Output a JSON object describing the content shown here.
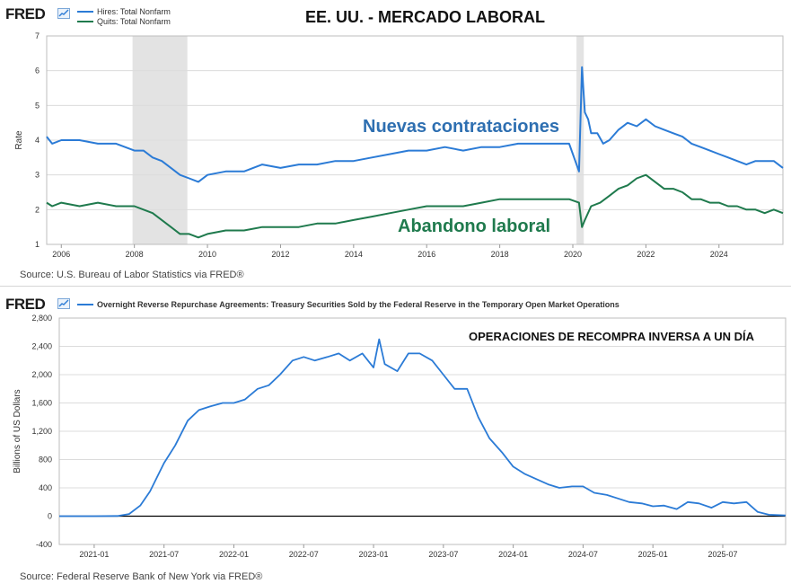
{
  "chart_data": [
    {
      "type": "line",
      "branding": "FRED",
      "title": "EE. UU. - MERCADO LABORAL",
      "ylabel": "Rate",
      "xlabel": "",
      "ylim": [
        1,
        7
      ],
      "xlim": [
        2005.6,
        2025.75
      ],
      "yticks": [
        "1",
        "2",
        "3",
        "4",
        "5",
        "6",
        "7"
      ],
      "xticks": [
        "2006",
        "2008",
        "2010",
        "2012",
        "2014",
        "2016",
        "2018",
        "2020",
        "2022",
        "2024"
      ],
      "recessions": [
        [
          2007.95,
          2009.45
        ],
        [
          2020.1,
          2020.3
        ]
      ],
      "annotations": [
        "Nuevas contrataciones",
        "Abandono laboral"
      ],
      "series": [
        {
          "name": "Hires: Total Nonfarm",
          "color": "#2b7bd6",
          "x": [
            2005.6,
            2005.75,
            2006.0,
            2006.5,
            2007.0,
            2007.5,
            2008.0,
            2008.25,
            2008.5,
            2008.75,
            2009.0,
            2009.25,
            2009.5,
            2009.75,
            2010.0,
            2010.5,
            2011.0,
            2011.5,
            2012.0,
            2012.5,
            2013.0,
            2013.5,
            2014.0,
            2014.5,
            2015.0,
            2015.5,
            2016.0,
            2016.5,
            2017.0,
            2017.5,
            2018.0,
            2018.5,
            2019.0,
            2019.5,
            2019.9,
            2020.17,
            2020.25,
            2020.33,
            2020.42,
            2020.5,
            2020.67,
            2020.83,
            2021.0,
            2021.25,
            2021.5,
            2021.75,
            2022.0,
            2022.25,
            2022.5,
            2022.75,
            2023.0,
            2023.25,
            2023.5,
            2023.75,
            2024.0,
            2024.25,
            2024.5,
            2024.75,
            2025.0,
            2025.25,
            2025.5,
            2025.75
          ],
          "values": [
            4.1,
            3.9,
            4.0,
            4.0,
            3.9,
            3.9,
            3.7,
            3.7,
            3.5,
            3.4,
            3.2,
            3.0,
            2.9,
            2.8,
            3.0,
            3.1,
            3.1,
            3.3,
            3.2,
            3.3,
            3.3,
            3.4,
            3.4,
            3.5,
            3.6,
            3.7,
            3.7,
            3.8,
            3.7,
            3.8,
            3.8,
            3.9,
            3.9,
            3.9,
            3.9,
            3.1,
            6.1,
            4.8,
            4.6,
            4.2,
            4.2,
            3.9,
            4.0,
            4.3,
            4.5,
            4.4,
            4.6,
            4.4,
            4.3,
            4.2,
            4.1,
            3.9,
            3.8,
            3.7,
            3.6,
            3.5,
            3.4,
            3.3,
            3.4,
            3.4,
            3.4,
            3.2
          ]
        },
        {
          "name": "Quits: Total Nonfarm",
          "color": "#1f7a4d",
          "x": [
            2005.6,
            2005.75,
            2006.0,
            2006.5,
            2007.0,
            2007.5,
            2008.0,
            2008.25,
            2008.5,
            2008.75,
            2009.0,
            2009.25,
            2009.5,
            2009.75,
            2010.0,
            2010.5,
            2011.0,
            2011.5,
            2012.0,
            2012.5,
            2013.0,
            2013.5,
            2014.0,
            2014.5,
            2015.0,
            2015.5,
            2016.0,
            2016.5,
            2017.0,
            2017.5,
            2018.0,
            2018.5,
            2019.0,
            2019.5,
            2019.9,
            2020.17,
            2020.25,
            2020.33,
            2020.5,
            2020.75,
            2021.0,
            2021.25,
            2021.5,
            2021.75,
            2022.0,
            2022.25,
            2022.5,
            2022.75,
            2023.0,
            2023.25,
            2023.5,
            2023.75,
            2024.0,
            2024.25,
            2024.5,
            2024.75,
            2025.0,
            2025.25,
            2025.5,
            2025.75
          ],
          "values": [
            2.2,
            2.1,
            2.2,
            2.1,
            2.2,
            2.1,
            2.1,
            2.0,
            1.9,
            1.7,
            1.5,
            1.3,
            1.3,
            1.2,
            1.3,
            1.4,
            1.4,
            1.5,
            1.5,
            1.5,
            1.6,
            1.6,
            1.7,
            1.8,
            1.9,
            2.0,
            2.1,
            2.1,
            2.1,
            2.2,
            2.3,
            2.3,
            2.3,
            2.3,
            2.3,
            2.2,
            1.5,
            1.7,
            2.1,
            2.2,
            2.4,
            2.6,
            2.7,
            2.9,
            3.0,
            2.8,
            2.6,
            2.6,
            2.5,
            2.3,
            2.3,
            2.2,
            2.2,
            2.1,
            2.1,
            2.0,
            2.0,
            1.9,
            2.0,
            1.9
          ]
        }
      ],
      "source": "Source: U.S. Bureau of Labor Statistics via FRED®"
    },
    {
      "type": "line",
      "branding": "FRED",
      "title": "OPERACIONES DE RECOMPRA INVERSA A UN DÍA",
      "ylabel": "Billions of US Dollars",
      "xlabel": "",
      "ylim": [
        -400,
        2800
      ],
      "xlim": [
        2020.75,
        2025.95
      ],
      "yticks": [
        "-400",
        "0",
        "400",
        "800",
        "1,200",
        "1,600",
        "2,000",
        "2,400",
        "2,800"
      ],
      "xticks": [
        "2021-01",
        "2021-07",
        "2022-01",
        "2022-07",
        "2023-01",
        "2023-07",
        "2024-01",
        "2024-07",
        "2025-01",
        "2025-07"
      ],
      "series": [
        {
          "name": "Overnight Reverse Repurchase Agreements: Treasury Securities Sold by the Federal Reserve in the Temporary Open Market Operations",
          "color": "#2b7bd6",
          "x": [
            2020.75,
            2021.0,
            2021.17,
            2021.25,
            2021.33,
            2021.4,
            2021.5,
            2021.58,
            2021.67,
            2021.75,
            2021.83,
            2021.92,
            2022.0,
            2022.08,
            2022.17,
            2022.25,
            2022.33,
            2022.42,
            2022.5,
            2022.58,
            2022.67,
            2022.75,
            2022.83,
            2022.92,
            2023.0,
            2023.04,
            2023.08,
            2023.17,
            2023.25,
            2023.33,
            2023.42,
            2023.5,
            2023.58,
            2023.67,
            2023.75,
            2023.83,
            2023.92,
            2024.0,
            2024.08,
            2024.17,
            2024.25,
            2024.33,
            2024.42,
            2024.5,
            2024.58,
            2024.67,
            2024.75,
            2024.83,
            2024.92,
            2025.0,
            2025.08,
            2025.17,
            2025.25,
            2025.33,
            2025.42,
            2025.5,
            2025.58,
            2025.67,
            2025.75,
            2025.83,
            2025.95
          ],
          "values": [
            0,
            0,
            2,
            30,
            150,
            350,
            750,
            1000,
            1350,
            1500,
            1550,
            1600,
            1600,
            1650,
            1800,
            1850,
            2000,
            2200,
            2250,
            2200,
            2250,
            2300,
            2200,
            2300,
            2100,
            2500,
            2150,
            2050,
            2300,
            2300,
            2200,
            2000,
            1800,
            1800,
            1400,
            1100,
            900,
            700,
            600,
            520,
            450,
            400,
            420,
            420,
            330,
            300,
            250,
            200,
            180,
            140,
            150,
            100,
            200,
            180,
            120,
            200,
            180,
            200,
            60,
            20,
            10
          ]
        }
      ],
      "source": "Source: Federal Reserve Bank of New York via FRED®"
    }
  ]
}
